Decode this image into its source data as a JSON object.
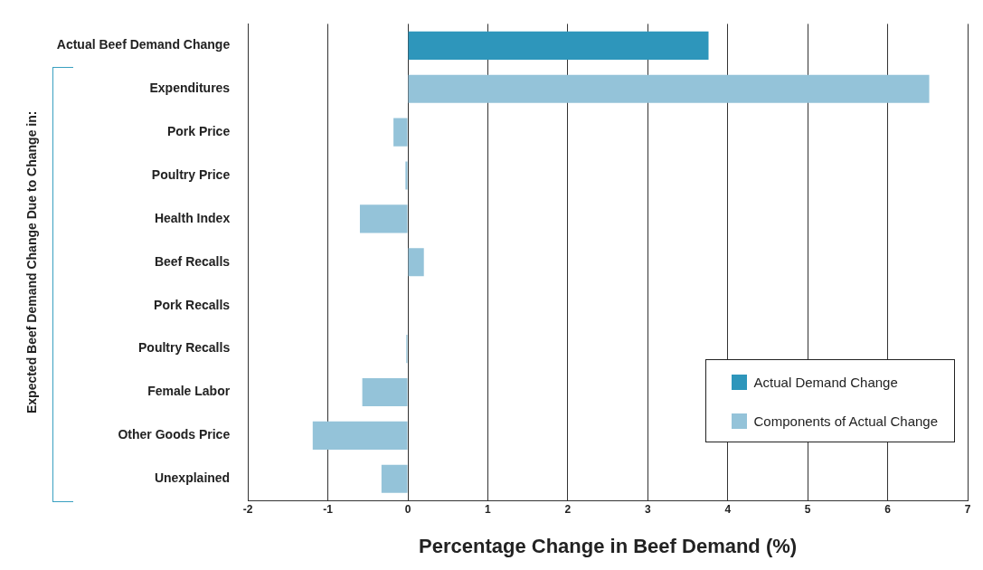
{
  "chart_data": {
    "type": "bar",
    "orientation": "horizontal",
    "categories": [
      "Actual Beef Demand Change",
      "Expenditures",
      "Pork Price",
      "Poultry Price",
      "Health Index",
      "Beef Recalls",
      "Pork Recalls",
      "Poultry Recalls",
      "Female Labor",
      "Other Goods Price",
      "Unexplained"
    ],
    "series": [
      {
        "name": "Actual Demand Change",
        "color": "#2e96bb",
        "values": [
          3.76,
          null,
          null,
          null,
          null,
          null,
          null,
          null,
          null,
          null,
          null
        ]
      },
      {
        "name": "Components of Actual Change",
        "color": "#94c3d9",
        "values": [
          null,
          6.52,
          -0.18,
          -0.03,
          -0.6,
          0.2,
          0,
          -0.02,
          -0.57,
          -1.19,
          -0.33
        ]
      }
    ],
    "xlabel": "Percentage Change in Beef Demand (%)",
    "ylabel": "Expected Beef Demand Change Due to Change in:",
    "xlim": [
      -2,
      7
    ],
    "xticks": [
      -2,
      -1,
      0,
      1,
      2,
      3,
      4,
      5,
      6,
      7
    ],
    "grid": "x",
    "legend": "bottom right"
  }
}
